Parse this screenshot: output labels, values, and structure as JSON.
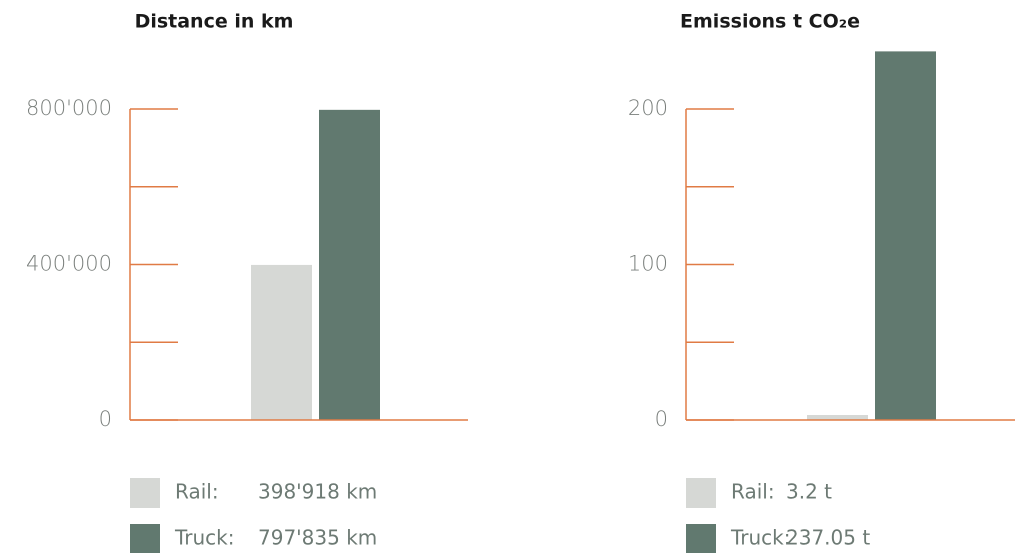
{
  "chart_data": [
    {
      "type": "bar",
      "title": "Distance in km",
      "series": [
        {
          "name": "Rail:",
          "color": "#d6d8d5",
          "values": [
            398918
          ],
          "value_labels": [
            "398'918 km"
          ]
        },
        {
          "name": "Truck:",
          "color": "#61796f",
          "values": [
            797835
          ],
          "value_labels": [
            "797'835 km"
          ]
        }
      ],
      "ylim": [
        0,
        800000
      ],
      "yticks": [
        0,
        {
          "value": 400000,
          "label": "400'000"
        },
        {
          "value": 800000,
          "label": "800'000"
        }
      ],
      "minor_yticks": [
        200000,
        600000
      ],
      "axis_color": "#e07b45"
    },
    {
      "type": "bar",
      "title": "Emissions t CO₂e",
      "series": [
        {
          "name": "Rail:",
          "color": "#d6d8d5",
          "values": [
            3.2
          ],
          "value_labels": [
            "3.2 t"
          ]
        },
        {
          "name": "Truck:",
          "color": "#61796f",
          "values": [
            237.05
          ],
          "value_labels": [
            "237.05 t"
          ]
        }
      ],
      "ylim": [
        0,
        200
      ],
      "yticks": [
        0,
        100,
        200
      ],
      "minor_yticks": [
        50,
        150
      ],
      "axis_color": "#e07b45"
    }
  ]
}
